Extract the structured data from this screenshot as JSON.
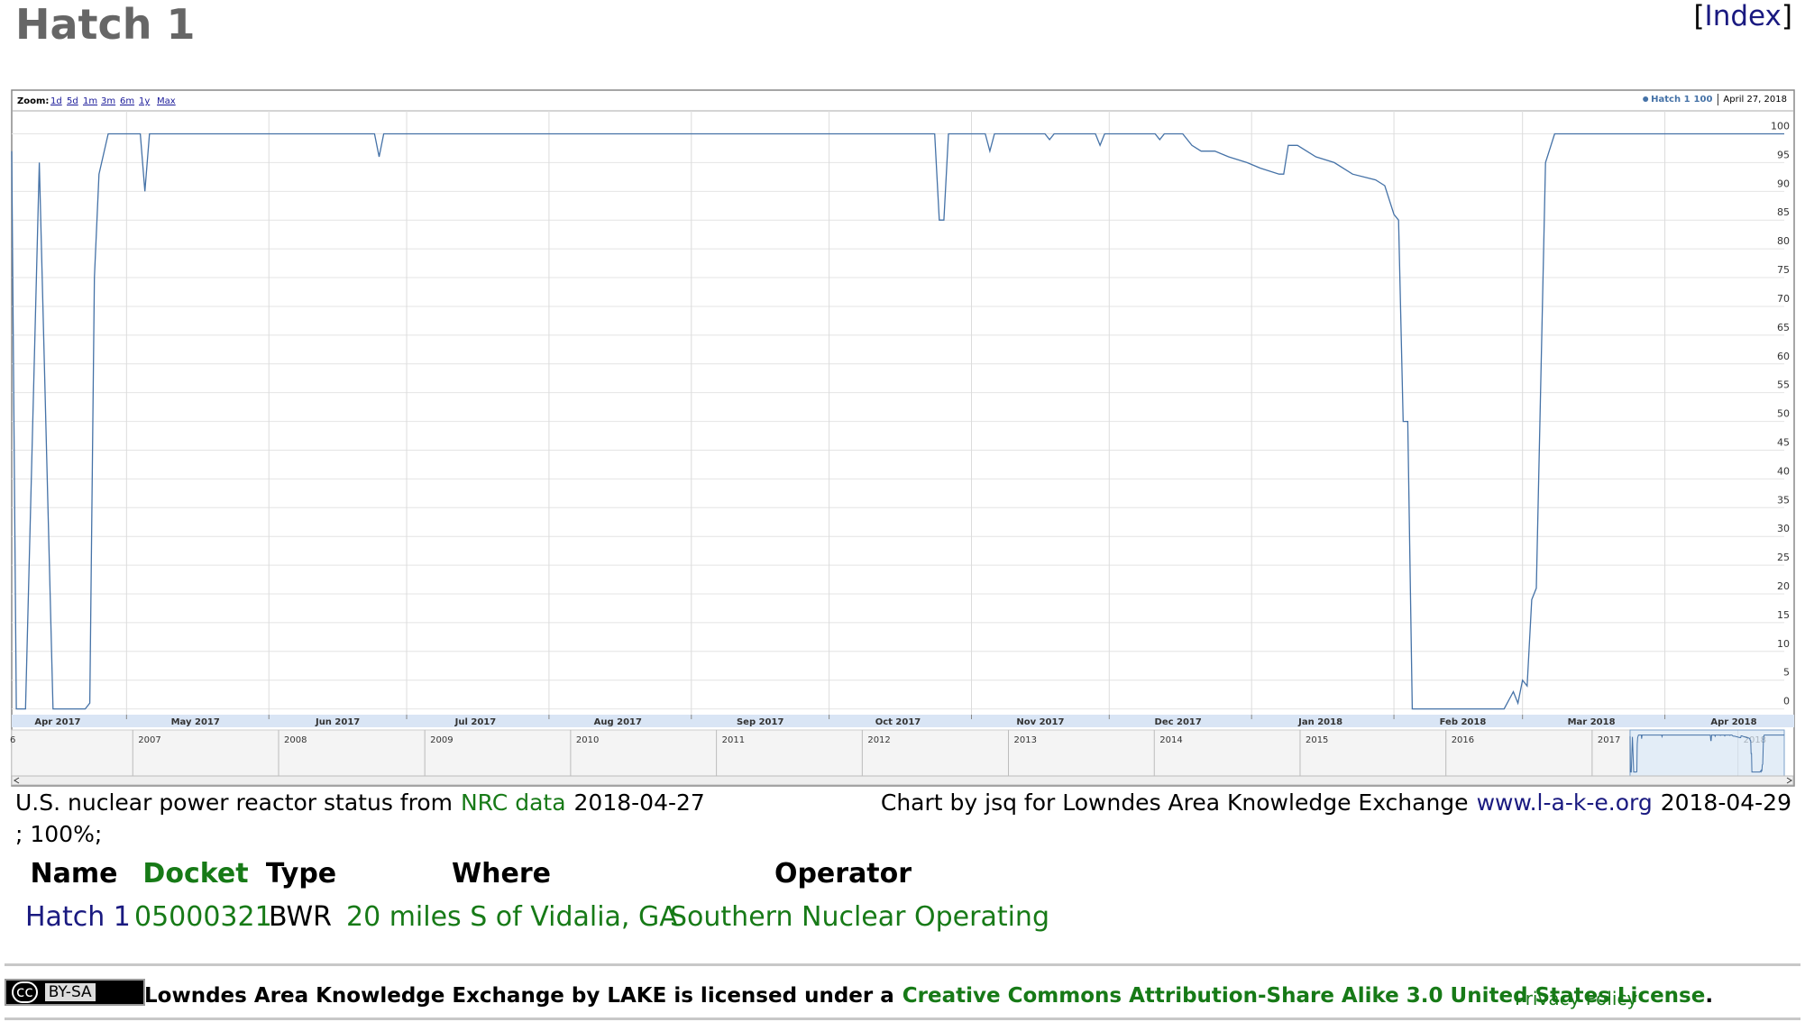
{
  "header": {
    "title": "Hatch 1",
    "index_open": "[",
    "index_link": "Index",
    "index_close": "]"
  },
  "chart_data": {
    "type": "line",
    "zoom": {
      "label": "Zoom:",
      "buttons": [
        "1d",
        "5d",
        "1m",
        "3m",
        "6m",
        "1y",
        "Max"
      ]
    },
    "legend_date": "April 27, 2018",
    "x": [
      "2017-04-06",
      "2017-04-07",
      "2017-04-09",
      "2017-04-12",
      "2017-04-15",
      "2017-04-22",
      "2017-04-23",
      "2017-04-24",
      "2017-04-25",
      "2017-04-27",
      "2017-05-04",
      "2017-05-05",
      "2017-05-06",
      "2017-06-24",
      "2017-06-25",
      "2017-06-26",
      "2017-10-24",
      "2017-10-25",
      "2017-10-26",
      "2017-10-27",
      "2017-11-04",
      "2017-11-05",
      "2017-11-06",
      "2017-11-17",
      "2017-11-18",
      "2017-11-19",
      "2017-11-28",
      "2017-11-29",
      "2017-11-30",
      "2017-12-11",
      "2017-12-12",
      "2017-12-13",
      "2017-12-17",
      "2017-12-19",
      "2017-12-21",
      "2017-12-24",
      "2017-12-27",
      "2017-12-31",
      "2018-01-03",
      "2018-01-07",
      "2018-01-08",
      "2018-01-09",
      "2018-01-11",
      "2018-01-15",
      "2018-01-19",
      "2018-01-23",
      "2018-01-28",
      "2018-01-30",
      "2018-02-01",
      "2018-02-02",
      "2018-02-03",
      "2018-02-04",
      "2018-02-05",
      "2018-02-25",
      "2018-02-27",
      "2018-02-28",
      "2018-03-01",
      "2018-03-02",
      "2018-03-03",
      "2018-03-04",
      "2018-03-06",
      "2018-03-08",
      "2018-04-27"
    ],
    "series": [
      {
        "name": "Hatch 1",
        "color": "#4572a7",
        "values": [
          97,
          0,
          0,
          95,
          0,
          0,
          1,
          75,
          93,
          100,
          100,
          90,
          100,
          100,
          96,
          100,
          100,
          85,
          85,
          100,
          100,
          97,
          100,
          100,
          99,
          100,
          100,
          98,
          100,
          100,
          99,
          100,
          100,
          98,
          97,
          97,
          96,
          95,
          94,
          93,
          93,
          98,
          98,
          96,
          95,
          93,
          92,
          91,
          86,
          85,
          50,
          50,
          0,
          0,
          3,
          1,
          5,
          4,
          19,
          21,
          95,
          100,
          100
        ]
      }
    ],
    "xlim": [
      "2017-04-06",
      "2018-04-27"
    ],
    "xticks": [
      {
        "value": "2017-04-01",
        "label": "Apr 2017"
      },
      {
        "value": "2017-05-01",
        "label": "May 2017"
      },
      {
        "value": "2017-06-01",
        "label": "Jun 2017"
      },
      {
        "value": "2017-07-01",
        "label": "Jul 2017"
      },
      {
        "value": "2017-08-01",
        "label": "Aug 2017"
      },
      {
        "value": "2017-09-01",
        "label": "Sep 2017"
      },
      {
        "value": "2017-10-01",
        "label": "Oct 2017"
      },
      {
        "value": "2017-11-01",
        "label": "Nov 2017"
      },
      {
        "value": "2017-12-01",
        "label": "Dec 2017"
      },
      {
        "value": "2018-01-01",
        "label": "Jan 2018"
      },
      {
        "value": "2018-02-01",
        "label": "Feb 2018"
      },
      {
        "value": "2018-03-01",
        "label": "Mar 2018"
      },
      {
        "value": "2018-04-01",
        "label": "Apr 2018"
      }
    ],
    "ylim": [
      -1,
      104
    ],
    "yticks": [
      0,
      5,
      10,
      15,
      20,
      25,
      30,
      35,
      40,
      45,
      50,
      55,
      60,
      65,
      70,
      75,
      80,
      85,
      90,
      95,
      100
    ],
    "grid": true,
    "navigator": {
      "xlim": [
        "2006-03-04",
        "2018-04-27"
      ],
      "xticks": [
        {
          "value": "2006-01-01",
          "label": "6"
        },
        {
          "value": "2007-01-01",
          "label": "2007"
        },
        {
          "value": "2008-01-01",
          "label": "2008"
        },
        {
          "value": "2009-01-01",
          "label": "2009"
        },
        {
          "value": "2010-01-01",
          "label": "2010"
        },
        {
          "value": "2011-01-01",
          "label": "2011"
        },
        {
          "value": "2012-01-01",
          "label": "2012"
        },
        {
          "value": "2013-01-01",
          "label": "2013"
        },
        {
          "value": "2014-01-01",
          "label": "2014"
        },
        {
          "value": "2015-01-01",
          "label": "2015"
        },
        {
          "value": "2016-01-01",
          "label": "2016"
        },
        {
          "value": "2017-01-01",
          "label": "2017"
        },
        {
          "value": "2018-01-01",
          "label": "2018"
        }
      ]
    }
  },
  "caption": {
    "left_text": "U.S. nuclear power reactor status from",
    "left_link": "NRC data",
    "left_date": "2018-04-27",
    "right_text": "Chart by jsq for Lowndes Area Knowledge Exchange",
    "right_link": "www.l-a-k-e.org",
    "right_date": "2018-04-29",
    "status": "; 100%;"
  },
  "table": {
    "headers": [
      "Name",
      "Docket",
      "Type",
      "Where",
      "Operator"
    ],
    "rows": [
      [
        "Hatch 1",
        "05000321",
        "BWR",
        "20 miles S of Vidalia, GA",
        "Southern Nuclear Operating"
      ]
    ]
  },
  "footer": {
    "badge": [
      "cc",
      "BY-SA"
    ],
    "text": "Lowndes Area Knowledge Exchange by LAKE is licensed under a",
    "license": "Creative Commons Attribution-Share Alike 3.0 United States License",
    "period": ".",
    "privacy": "Privacy Policy"
  }
}
